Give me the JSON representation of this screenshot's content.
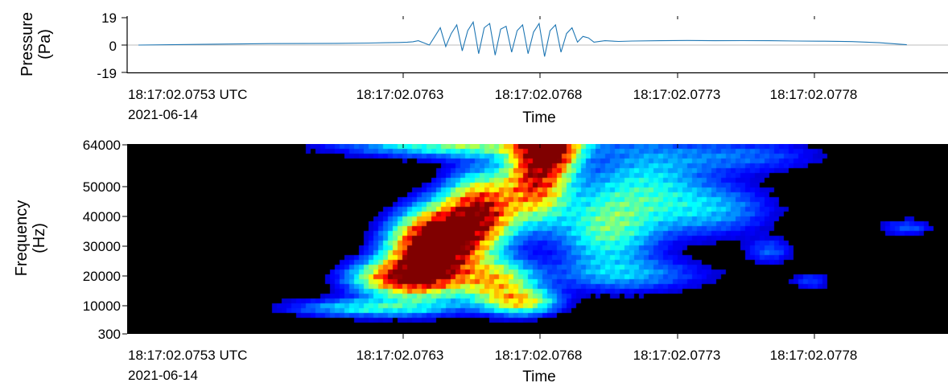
{
  "chart_data": [
    {
      "type": "line",
      "title": "",
      "ylabel": "Pressure",
      "ylabel_unit": "(Pa)",
      "xlabel": "Time",
      "ylim": [
        -19,
        19
      ],
      "yticks": [
        "19",
        "0",
        "-19"
      ],
      "xticks": [
        "18:17:02.0753 UTC",
        "18:17:02.0763",
        "18:17:02.0768",
        "18:17:02.0773",
        "18:17:02.0778"
      ],
      "x_start_date": "2021-06-14",
      "grid": false,
      "zero_line": true,
      "line_color": "#1f77b4",
      "series": [
        {
          "x_ms": [
            0.0,
            0.24,
            0.48,
            0.72,
            0.84,
            0.9,
            0.95,
            0.98,
            1.0,
            1.02,
            1.04,
            1.06,
            1.08,
            1.1,
            1.12,
            1.14,
            1.16,
            1.18,
            1.2,
            1.22,
            1.24,
            1.26,
            1.28,
            1.3,
            1.32,
            1.34,
            1.36,
            1.38,
            1.4,
            1.42,
            1.44,
            1.46,
            1.48,
            1.5,
            1.52,
            1.54,
            1.56,
            1.58,
            1.6,
            1.62,
            1.64,
            1.66,
            1.7,
            1.75,
            1.8,
            1.9,
            2.0,
            2.1,
            2.2,
            2.3,
            2.4,
            2.5,
            2.6,
            2.7,
            2.8
          ],
          "pressure_pa": [
            0.0,
            0.5,
            1.0,
            1.2,
            1.4,
            1.6,
            1.8,
            2.0,
            2.3,
            3.0,
            1.5,
            0.0,
            6.0,
            12.0,
            -1.0,
            8.0,
            14.0,
            -4.0,
            10.0,
            16.0,
            -6.0,
            12.0,
            15.0,
            -7.0,
            11.0,
            13.0,
            -5.0,
            10.0,
            14.0,
            -6.0,
            9.0,
            15.0,
            -8.0,
            10.0,
            14.0,
            -5.0,
            8.0,
            12.0,
            2.0,
            6.0,
            5.0,
            2.0,
            3.0,
            2.5,
            2.8,
            3.0,
            3.2,
            3.0,
            3.1,
            3.0,
            2.8,
            2.7,
            2.4,
            1.6,
            0.2
          ]
        }
      ]
    },
    {
      "type": "heatmap",
      "title": "",
      "ylabel": "Frequency",
      "ylabel_unit": "(Hz)",
      "xlabel": "Time",
      "ylim": [
        300,
        64000
      ],
      "yticks": [
        "64000",
        "50000",
        "40000",
        "30000",
        "20000",
        "10000",
        "300"
      ],
      "xticks": [
        "18:17:02.0753 UTC",
        "18:17:02.0763",
        "18:17:02.0768",
        "18:17:02.0773",
        "18:17:02.0778"
      ],
      "x_start_date": "2021-06-14",
      "colormap": "jet",
      "background": "#000000",
      "blobs": [
        {
          "t_ms": 1.05,
          "f_hz": 26000,
          "st": 0.1,
          "sf": 8000,
          "a": 1.0
        },
        {
          "t_ms": 1.12,
          "f_hz": 33000,
          "st": 0.1,
          "sf": 7000,
          "a": 0.95
        },
        {
          "t_ms": 1.25,
          "f_hz": 42000,
          "st": 0.09,
          "sf": 8000,
          "a": 1.0
        },
        {
          "t_ms": 1.45,
          "f_hz": 52000,
          "st": 0.08,
          "sf": 9000,
          "a": 0.95
        },
        {
          "t_ms": 1.5,
          "f_hz": 62000,
          "st": 0.07,
          "sf": 5000,
          "a": 0.95
        },
        {
          "t_ms": 0.95,
          "f_hz": 19000,
          "st": 0.12,
          "sf": 4000,
          "a": 0.85
        },
        {
          "t_ms": 1.3,
          "f_hz": 18000,
          "st": 0.1,
          "sf": 5000,
          "a": 0.7
        },
        {
          "t_ms": 1.4,
          "f_hz": 11000,
          "st": 0.09,
          "sf": 3000,
          "a": 0.6
        },
        {
          "t_ms": 0.85,
          "f_hz": 9000,
          "st": 0.2,
          "sf": 2200,
          "a": 0.4
        },
        {
          "t_ms": 1.7,
          "f_hz": 35000,
          "st": 0.12,
          "sf": 9000,
          "a": 0.45
        },
        {
          "t_ms": 1.85,
          "f_hz": 50000,
          "st": 0.15,
          "sf": 10000,
          "a": 0.35
        },
        {
          "t_ms": 2.1,
          "f_hz": 42000,
          "st": 0.15,
          "sf": 6000,
          "a": 0.28
        },
        {
          "t_ms": 1.8,
          "f_hz": 20000,
          "st": 0.2,
          "sf": 4000,
          "a": 0.25
        },
        {
          "t_ms": 2.2,
          "f_hz": 60000,
          "st": 0.2,
          "sf": 4000,
          "a": 0.22
        },
        {
          "t_ms": 2.3,
          "f_hz": 28000,
          "st": 0.06,
          "sf": 3000,
          "a": 0.2
        },
        {
          "t_ms": 2.45,
          "f_hz": 18000,
          "st": 0.05,
          "sf": 2000,
          "a": 0.18
        },
        {
          "t_ms": 2.8,
          "f_hz": 36000,
          "st": 0.07,
          "sf": 2000,
          "a": 0.2
        },
        {
          "t_ms": 1.2,
          "f_hz": 64000,
          "st": 0.3,
          "sf": 3000,
          "a": 0.55
        }
      ]
    }
  ]
}
